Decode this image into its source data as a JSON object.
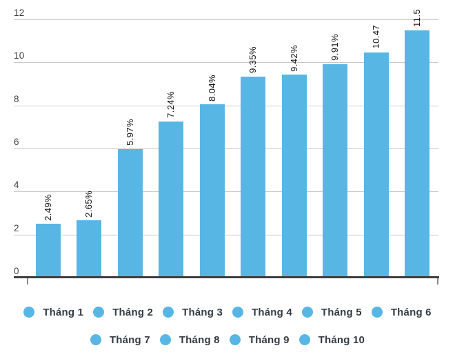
{
  "chart_data": {
    "type": "bar",
    "title": "",
    "xlabel": "",
    "ylabel": "",
    "categories": [
      "Tháng 1",
      "Tháng 2",
      "Tháng 3",
      "Tháng 4",
      "Tháng 5",
      "Tháng 6",
      "Tháng 7",
      "Tháng 8",
      "Tháng 9",
      "Tháng 10"
    ],
    "values": [
      2.49,
      2.65,
      5.97,
      7.24,
      8.04,
      9.35,
      9.42,
      9.91,
      10.47,
      11.5
    ],
    "value_labels": [
      "2.49%",
      "2.65%",
      "5.97%",
      "7.24%",
      "8.04%",
      "9.35%",
      "9.42%",
      "9.91%",
      "10.47",
      "11.5"
    ],
    "y_ticks": [
      0,
      2,
      4,
      6,
      8,
      10,
      12
    ],
    "ylim": [
      0,
      12
    ],
    "grid": true,
    "legend_position": "bottom",
    "legend_row_split": 6,
    "colors": {
      "bar": "#58b6e4",
      "gridline": "#c9c9c9",
      "axis": "#3d3d3d",
      "y_label": "#3f3f3f",
      "value_label": "#141414",
      "legend_text": "#333b43"
    }
  }
}
